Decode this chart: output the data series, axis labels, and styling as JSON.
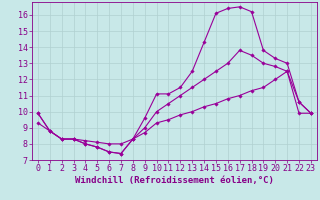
{
  "xlabel": "Windchill (Refroidissement éolien,°C)",
  "bg_color": "#c8e8e8",
  "grid_color": "#b0d0d0",
  "line_color": "#990099",
  "xlim": [
    -0.5,
    23.5
  ],
  "ylim": [
    7,
    16.8
  ],
  "xticks": [
    0,
    1,
    2,
    3,
    4,
    5,
    6,
    7,
    8,
    9,
    10,
    11,
    12,
    13,
    14,
    15,
    16,
    17,
    18,
    19,
    20,
    21,
    22,
    23
  ],
  "yticks": [
    7,
    8,
    9,
    10,
    11,
    12,
    13,
    14,
    15,
    16
  ],
  "line1_x": [
    0,
    1,
    2,
    3,
    4,
    5,
    6,
    7,
    8,
    9,
    10,
    11,
    12,
    13,
    14,
    15,
    16,
    17,
    18,
    19,
    20,
    21,
    22,
    23
  ],
  "line1_y": [
    9.9,
    8.8,
    8.3,
    8.3,
    8.0,
    7.8,
    7.5,
    7.4,
    8.3,
    9.6,
    11.1,
    11.1,
    11.5,
    12.5,
    14.3,
    16.1,
    16.4,
    16.5,
    16.2,
    13.8,
    13.3,
    13.0,
    10.6,
    9.9
  ],
  "line2_x": [
    0,
    1,
    2,
    3,
    4,
    5,
    6,
    7,
    8,
    9,
    10,
    11,
    12,
    13,
    14,
    15,
    16,
    17,
    18,
    19,
    20,
    21,
    22,
    23
  ],
  "line2_y": [
    9.9,
    8.8,
    8.3,
    8.3,
    8.0,
    7.8,
    7.5,
    7.4,
    8.3,
    9.0,
    10.0,
    10.5,
    11.0,
    11.5,
    12.0,
    12.5,
    13.0,
    13.8,
    13.5,
    13.0,
    12.8,
    12.5,
    10.6,
    9.9
  ],
  "line3_x": [
    0,
    1,
    2,
    3,
    4,
    5,
    6,
    7,
    8,
    9,
    10,
    11,
    12,
    13,
    14,
    15,
    16,
    17,
    18,
    19,
    20,
    21,
    22,
    23
  ],
  "line3_y": [
    9.3,
    8.8,
    8.3,
    8.3,
    8.2,
    8.1,
    8.0,
    8.0,
    8.3,
    8.7,
    9.3,
    9.5,
    9.8,
    10.0,
    10.3,
    10.5,
    10.8,
    11.0,
    11.3,
    11.5,
    12.0,
    12.5,
    9.9,
    9.9
  ],
  "marker": "D",
  "marker_size": 1.8,
  "line_width": 0.8,
  "xlabel_fontsize": 6.5,
  "tick_fontsize": 6.0,
  "label_color": "#880088"
}
